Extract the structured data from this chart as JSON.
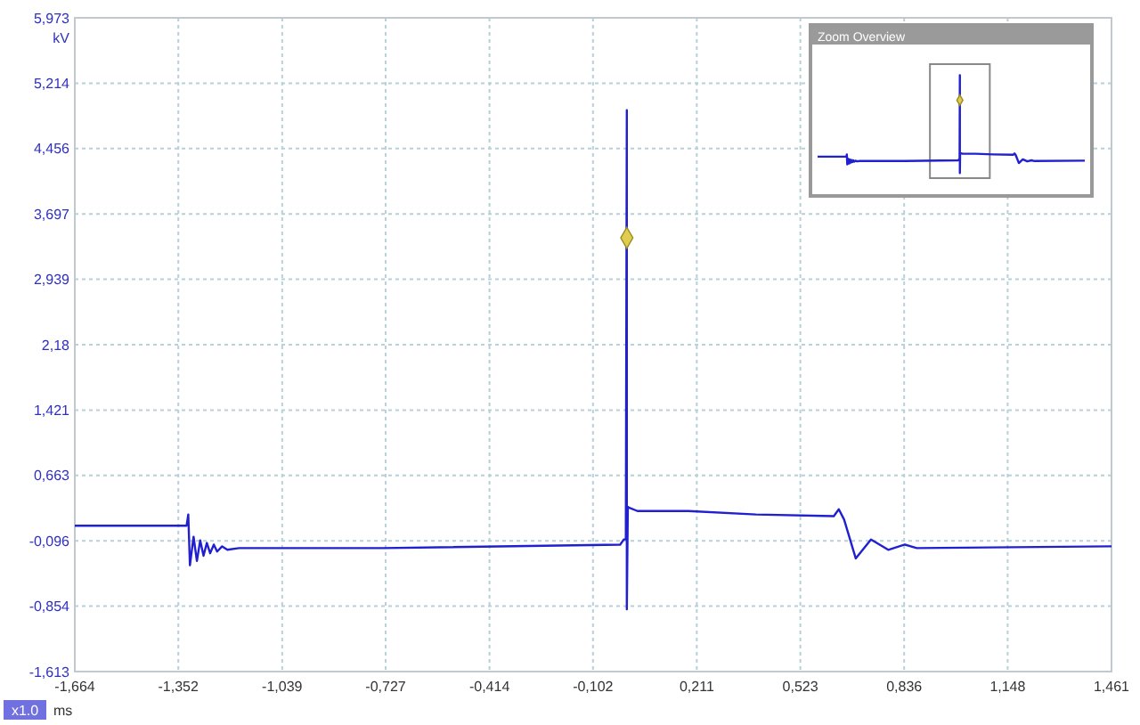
{
  "chart_data": {
    "type": "line",
    "xlabel": "ms",
    "ylabel": "kV",
    "annotations": [
      "x1.0",
      "Zoom Overview"
    ],
    "xlim": [
      -1.664,
      1.461
    ],
    "ylim": [
      -1.613,
      5.973
    ],
    "xticks": [
      {
        "value": -1.664,
        "label": "-1,664"
      },
      {
        "value": -1.352,
        "label": "-1,352"
      },
      {
        "value": -1.039,
        "label": "-1,039"
      },
      {
        "value": -0.727,
        "label": "-0,727"
      },
      {
        "value": -0.414,
        "label": "-0,414"
      },
      {
        "value": -0.102,
        "label": "-0,102"
      },
      {
        "value": 0.211,
        "label": "0,211"
      },
      {
        "value": 0.523,
        "label": "0,523"
      },
      {
        "value": 0.836,
        "label": "0,836"
      },
      {
        "value": 1.148,
        "label": "1,148"
      },
      {
        "value": 1.461,
        "label": "1,461"
      }
    ],
    "yticks": [
      {
        "value": -1.613,
        "label": "-1,613"
      },
      {
        "value": -0.854,
        "label": "-0,854"
      },
      {
        "value": -0.096,
        "label": "-0,096"
      },
      {
        "value": 0.663,
        "label": "0,663"
      },
      {
        "value": 1.421,
        "label": "1,421"
      },
      {
        "value": 2.18,
        "label": "2,18"
      },
      {
        "value": 2.939,
        "label": "2,939"
      },
      {
        "value": 3.697,
        "label": "3,697"
      },
      {
        "value": 4.456,
        "label": "4,456"
      },
      {
        "value": 5.214,
        "label": "5,214"
      },
      {
        "value": 5.973,
        "label": "5,973"
      }
    ],
    "grid": true,
    "line_style": "solid",
    "series": [
      {
        "color": "#2020d0",
        "x": [
          -1.664,
          -1.327,
          -1.322,
          -1.317,
          -1.306,
          -1.296,
          -1.286,
          -1.276,
          -1.266,
          -1.256,
          -1.245,
          -1.235,
          -1.22,
          -1.204,
          -1.169,
          -0.734,
          -0.02,
          -0.009,
          -0.003,
          0,
          0,
          0.003,
          0.006,
          0.032,
          0.185,
          0.389,
          0.624,
          0.639,
          0.655,
          0.69,
          0.736,
          0.788,
          0.838,
          0.874,
          1.461
        ],
        "values": [
          0.08,
          0.08,
          0.21,
          -0.38,
          -0.05,
          -0.33,
          -0.09,
          -0.27,
          -0.12,
          -0.24,
          -0.14,
          -0.22,
          -0.16,
          -0.2,
          -0.18,
          -0.18,
          -0.14,
          -0.08,
          -0.08,
          4.9,
          -0.89,
          0.3,
          0.29,
          0.25,
          0.25,
          0.21,
          0.19,
          0.27,
          0.15,
          -0.3,
          -0.08,
          -0.2,
          -0.14,
          -0.18,
          -0.16
        ]
      },
      {
        "type": "scatter",
        "marker": "diamond",
        "color": "#e0cc50",
        "x": [
          0
        ],
        "values": [
          3.42
        ]
      }
    ]
  }
}
